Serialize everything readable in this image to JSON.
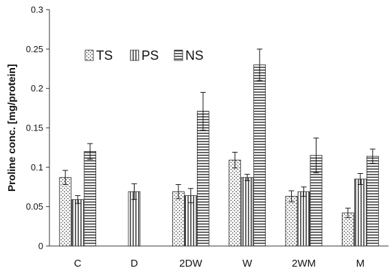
{
  "chart_data": {
    "type": "bar",
    "categories": [
      "C",
      "D",
      "2DW",
      "W",
      "2WM",
      "M"
    ],
    "series": [
      {
        "name": "TS",
        "values": [
          0.087,
          null,
          0.069,
          0.109,
          0.063,
          0.042
        ],
        "errors": [
          0.009,
          null,
          0.009,
          0.01,
          0.007,
          0.006
        ],
        "pattern": "dots"
      },
      {
        "name": "PS",
        "values": [
          0.059,
          0.069,
          0.064,
          0.087,
          0.069,
          0.085
        ],
        "errors": [
          0.005,
          0.01,
          0.009,
          0.004,
          0.006,
          0.007
        ],
        "pattern": "vertical"
      },
      {
        "name": "NS",
        "values": [
          0.12,
          null,
          0.171,
          0.23,
          0.115,
          0.114
        ],
        "errors": [
          0.01,
          null,
          0.024,
          0.02,
          0.022,
          0.009
        ],
        "pattern": "horizontal"
      }
    ],
    "ylabel": "Proline conc. [mg/protein]",
    "ylim": [
      0,
      0.3
    ],
    "yticks": [
      "0",
      "0.05",
      "0.1",
      "0.15",
      "0.2",
      "0.25",
      "0.3"
    ],
    "grid": false,
    "legend": "top-left"
  }
}
